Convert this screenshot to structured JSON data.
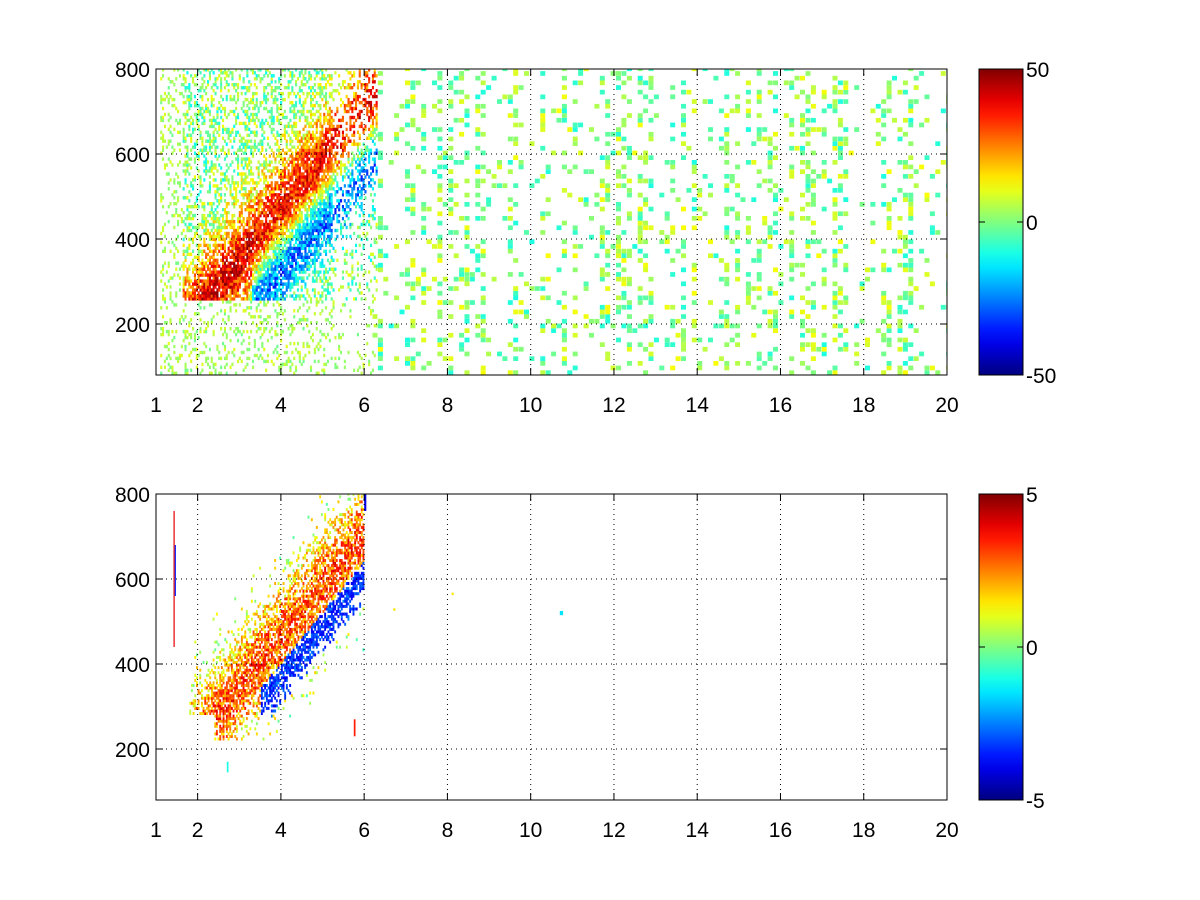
{
  "chart_data": [
    {
      "type": "heatmap",
      "title": "",
      "xlabel": "",
      "ylabel": "",
      "xlim": [
        1,
        20
      ],
      "ylim": [
        80,
        800
      ],
      "x_ticks": [
        "1",
        "2",
        "4",
        "6",
        "8",
        "10",
        "12",
        "14",
        "16",
        "18",
        "20"
      ],
      "x_tick_values": [
        1,
        2,
        4,
        6,
        8,
        10,
        12,
        14,
        16,
        18,
        20
      ],
      "y_ticks": [
        "200",
        "400",
        "600",
        "800"
      ],
      "y_tick_values": [
        200,
        400,
        600,
        800
      ],
      "grid": true,
      "colormap": "jet",
      "colorbar": {
        "range": [
          -50,
          50
        ],
        "tick_labels": [
          "50",
          "0",
          "-50"
        ],
        "tick_values": [
          50,
          0,
          -50
        ]
      }
    },
    {
      "type": "heatmap",
      "title": "",
      "xlabel": "",
      "ylabel": "",
      "xlim": [
        1,
        20
      ],
      "ylim": [
        80,
        800
      ],
      "x_ticks": [
        "1",
        "2",
        "4",
        "6",
        "8",
        "10",
        "12",
        "14",
        "16",
        "18",
        "20"
      ],
      "x_tick_values": [
        1,
        2,
        4,
        6,
        8,
        10,
        12,
        14,
        16,
        18,
        20
      ],
      "y_ticks": [
        "200",
        "400",
        "600",
        "800"
      ],
      "y_tick_values": [
        200,
        400,
        600,
        800
      ],
      "grid": true,
      "colormap": "jet",
      "colorbar": {
        "range": [
          -5,
          5
        ],
        "tick_labels": [
          "5",
          "0",
          "-5"
        ],
        "tick_values": [
          5,
          0,
          -5
        ]
      }
    }
  ]
}
